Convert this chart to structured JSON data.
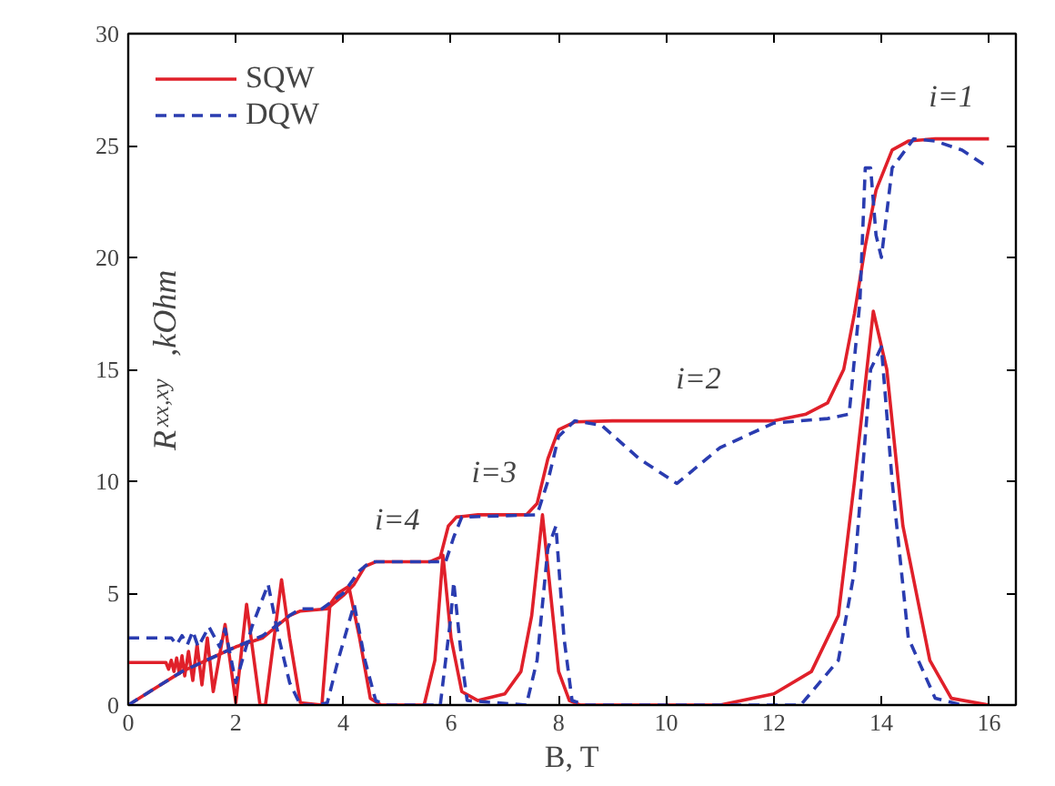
{
  "chart_data": {
    "type": "line",
    "xlabel": "B, T",
    "ylabel": "R$_{xx,xy}$ ,kOhm",
    "xlim": [
      0,
      16.5
    ],
    "ylim": [
      0,
      30
    ],
    "xticks": [
      0,
      2,
      4,
      6,
      8,
      10,
      12,
      14,
      16
    ],
    "yticks": [
      0,
      5,
      10,
      15,
      20,
      25,
      30
    ],
    "legend": "top left",
    "grid": false,
    "series": [
      {
        "name": "SQW",
        "color": "#e0202a",
        "line_style": "solid",
        "x": [
          0,
          1,
          2,
          2.5,
          3,
          3.2,
          3.7,
          4,
          4.2,
          4.4,
          4.6,
          5.6,
          5.8,
          5.95,
          6.1,
          6.5,
          7.4,
          7.6,
          7.8,
          8.0,
          8.3,
          9,
          12,
          12.6,
          13,
          13.3,
          13.5,
          13.7,
          13.9,
          14.2,
          14.5,
          15,
          16
        ],
        "values": [
          0,
          1.5,
          2.6,
          3.0,
          4.0,
          4.2,
          4.3,
          4.9,
          5.4,
          6.2,
          6.4,
          6.4,
          6.6,
          8.0,
          8.4,
          8.5,
          8.5,
          9.0,
          11.0,
          12.3,
          12.65,
          12.7,
          12.7,
          13.0,
          13.5,
          15,
          17.5,
          20.5,
          23,
          24.8,
          25.2,
          25.3,
          25.3
        ]
      },
      {
        "color": "#e0202a",
        "line_style": "solid",
        "x": [
          0,
          0.5,
          0.7,
          0.75,
          0.8,
          0.85,
          0.9,
          0.95,
          1.0,
          1.05,
          1.12,
          1.2,
          1.28,
          1.37,
          1.47,
          1.58,
          1.8,
          2.0,
          2.2,
          2.45,
          2.55,
          2.85,
          3.0,
          3.2,
          3.6,
          3.75,
          3.9,
          4.1,
          4.3,
          4.5,
          4.7,
          5.5,
          5.7,
          5.85,
          6.0,
          6.2,
          6.5,
          7,
          7.3,
          7.5,
          7.7,
          7.85,
          8.0,
          8.2,
          8.4,
          11,
          12,
          12.7,
          13.2,
          13.5,
          13.85,
          14.1,
          14.4,
          14.9,
          15.3,
          16
        ],
        "values": [
          1.9,
          1.9,
          1.9,
          1.6,
          2.0,
          1.5,
          2.1,
          1.4,
          2.2,
          1.3,
          2.4,
          1.1,
          2.7,
          0.9,
          3.0,
          0.6,
          3.6,
          0.1,
          4.5,
          0,
          0,
          5.6,
          3,
          0.1,
          0,
          4.5,
          5.0,
          5.3,
          3,
          0.3,
          0,
          0,
          2,
          6.7,
          3,
          0.6,
          0.2,
          0.5,
          1.5,
          4,
          8.5,
          5,
          1.5,
          0.2,
          0,
          0,
          0.5,
          1.5,
          4,
          10,
          17.6,
          15,
          8,
          2,
          0.3,
          0
        ]
      },
      {
        "name": "DQW",
        "color": "#2a3cb0",
        "line_style": "dashed",
        "x": [
          0,
          1,
          2,
          2.5,
          3,
          3.2,
          3.6,
          4,
          4.3,
          4.5,
          5.9,
          6.05,
          6.2,
          7.6,
          7.8,
          8.0,
          8.3,
          8.8,
          9.5,
          10.2,
          11,
          12,
          13,
          13.4,
          13.6,
          13.7,
          13.8,
          13.9,
          14.0,
          14.2,
          14.6,
          15,
          15.5,
          16
        ],
        "values": [
          0,
          1.5,
          2.6,
          3.1,
          4.0,
          4.3,
          4.3,
          5.0,
          6.0,
          6.4,
          6.4,
          7.5,
          8.4,
          8.5,
          10,
          12.0,
          12.7,
          12.5,
          11,
          9.9,
          11.5,
          12.6,
          12.8,
          13,
          18,
          24,
          24,
          21,
          20,
          24,
          25.3,
          25.2,
          24.8,
          24
        ]
      },
      {
        "color": "#2a3cb0",
        "line_style": "dashed",
        "x": [
          0,
          0.5,
          0.8,
          0.9,
          1.0,
          1.1,
          1.2,
          1.3,
          1.5,
          1.7,
          1.8,
          2.0,
          2.3,
          2.6,
          2.8,
          3.0,
          3.2,
          3.5,
          3.7,
          3.9,
          4.2,
          4.4,
          4.6,
          4.8,
          5.8,
          6.0,
          6.05,
          6.2,
          6.3,
          7.4,
          7.6,
          7.8,
          7.95,
          8.1,
          8.25,
          8.5,
          12.5,
          13.2,
          13.5,
          13.8,
          14.0,
          14.2,
          14.5,
          15,
          15.5
        ],
        "values": [
          3.0,
          3.0,
          3.0,
          2.7,
          3.1,
          2.7,
          3.3,
          2.6,
          3.5,
          2.6,
          3.4,
          1.0,
          3.5,
          5.4,
          3,
          1.0,
          0,
          0,
          0.1,
          2,
          4.5,
          2,
          0.2,
          0,
          0,
          4,
          5.5,
          2,
          0.2,
          0,
          2,
          7,
          8,
          3,
          0.2,
          0,
          0,
          2,
          6,
          15,
          16,
          10,
          3,
          0.3,
          0
        ]
      }
    ],
    "annotations": [
      {
        "text": "i=4",
        "x": 5.0,
        "y": 6.4
      },
      {
        "text": "i=3",
        "x": 6.8,
        "y": 8.5
      },
      {
        "text": "i=2",
        "x": 10.6,
        "y": 12.7
      },
      {
        "text": "i=1",
        "x": 15.3,
        "y": 25.3
      }
    ]
  }
}
